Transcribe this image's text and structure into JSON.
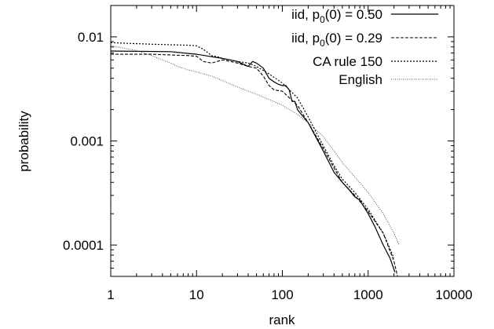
{
  "chart_data": {
    "type": "line",
    "title": "",
    "xlabel": "rank",
    "ylabel": "probability",
    "xscale": "log",
    "yscale": "log",
    "xlim": [
      1,
      10000
    ],
    "ylim": [
      5e-05,
      0.02
    ],
    "grid": false,
    "legend_position": "top-right",
    "x_ticks": [
      {
        "value": 1,
        "label": "1"
      },
      {
        "value": 10,
        "label": "10"
      },
      {
        "value": 100,
        "label": "100"
      },
      {
        "value": 1000,
        "label": "1000"
      },
      {
        "value": 10000,
        "label": "10000"
      }
    ],
    "y_ticks": [
      {
        "value": 0.01,
        "label": "0.01"
      },
      {
        "value": 0.001,
        "label": "0.001"
      },
      {
        "value": 0.0001,
        "label": "0.0001"
      }
    ],
    "legend": [
      {
        "label_main": "iid, p",
        "label_sub": "0",
        "label_rest": "(0) = 0.50"
      },
      {
        "label_main": "iid, p",
        "label_sub": "0",
        "label_rest": "(0) = 0.29"
      },
      {
        "label_main": "CA rule 150",
        "label_sub": "",
        "label_rest": ""
      },
      {
        "label_main": "English",
        "label_sub": "",
        "label_rest": ""
      }
    ],
    "series": [
      {
        "name": "iid, p0(0) = 0.50",
        "style": "solid",
        "color": "#000000",
        "x": [
          1,
          5,
          10,
          20,
          30,
          40,
          45,
          50,
          60,
          70,
          80,
          90,
          100,
          110,
          120,
          130,
          140,
          150,
          200,
          300,
          400,
          500,
          600,
          700,
          800,
          1000,
          1200,
          1500,
          1800,
          2048
        ],
        "y": [
          0.0073,
          0.0072,
          0.0068,
          0.0062,
          0.0058,
          0.0052,
          0.0058,
          0.0056,
          0.005,
          0.004,
          0.0037,
          0.0035,
          0.0034,
          0.0034,
          0.0031,
          0.0024,
          0.0024,
          0.002,
          0.0015,
          0.0008,
          0.0005,
          0.0004,
          0.00034,
          0.00029,
          0.00027,
          0.0002,
          0.00015,
          0.0001,
          7.5e-05,
          5.5e-05
        ]
      },
      {
        "name": "iid, p0(0) = 0.29",
        "style": "dashed",
        "color": "#000000",
        "x": [
          1,
          3,
          5,
          8,
          10,
          12,
          15,
          20,
          25,
          30,
          40,
          50,
          60,
          70,
          80,
          100,
          150,
          200,
          300,
          400,
          500,
          700,
          1000,
          1500,
          2000,
          2200
        ],
        "y": [
          0.0068,
          0.0068,
          0.0067,
          0.0066,
          0.0065,
          0.0058,
          0.0056,
          0.006,
          0.0058,
          0.0056,
          0.0052,
          0.005,
          0.0042,
          0.0034,
          0.0031,
          0.003,
          0.0022,
          0.0015,
          0.00085,
          0.00055,
          0.0004,
          0.0003,
          0.00021,
          0.00013,
          7e-05,
          5e-05
        ]
      },
      {
        "name": "CA rule 150",
        "style": "dotted",
        "color": "#000000",
        "x": [
          1,
          2,
          3,
          5,
          8,
          10,
          12,
          15,
          18,
          20,
          25,
          30,
          40,
          50,
          70,
          100,
          150,
          200,
          300,
          400,
          500,
          700,
          1000,
          1500,
          2000
        ],
        "y": [
          0.0088,
          0.0086,
          0.0085,
          0.0084,
          0.0083,
          0.0082,
          0.0076,
          0.0066,
          0.0064,
          0.0062,
          0.006,
          0.0058,
          0.0056,
          0.0052,
          0.0044,
          0.0036,
          0.0026,
          0.0017,
          0.0009,
          0.00058,
          0.00043,
          0.00032,
          0.00022,
          0.00013,
          7.5e-05
        ]
      },
      {
        "name": "English",
        "style": "dotted-fine",
        "color": "#555555",
        "x": [
          1,
          2,
          3,
          4,
          5,
          6,
          7,
          8,
          10,
          15,
          20,
          30,
          50,
          70,
          100,
          150,
          200,
          300,
          400,
          500,
          700,
          1000,
          1500,
          2000,
          2300
        ],
        "y": [
          0.0082,
          0.0074,
          0.0066,
          0.006,
          0.0056,
          0.0052,
          0.005,
          0.0048,
          0.0046,
          0.0042,
          0.0038,
          0.0033,
          0.0028,
          0.0025,
          0.0022,
          0.0018,
          0.0015,
          0.0011,
          0.0008,
          0.00062,
          0.00045,
          0.00032,
          0.0002,
          0.00013,
          0.0001
        ]
      }
    ]
  }
}
